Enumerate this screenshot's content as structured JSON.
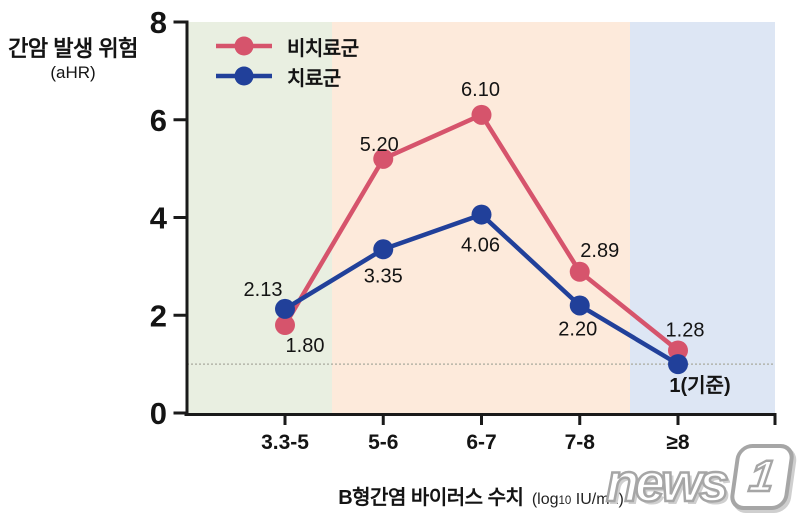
{
  "chart_data": {
    "type": "line",
    "ylabel": "간암 발생 위험",
    "ylabel_sub": "(aHR)",
    "xlabel": "B형간염 바이러스 수치",
    "xlabel_unit_prefix": "(log",
    "xlabel_unit_sub": "10",
    "xlabel_unit_suffix": " IU/mL)",
    "categories": [
      "3.3-5",
      "5-6",
      "6-7",
      "7-8",
      "≥8"
    ],
    "yticks": [
      0,
      2,
      4,
      6,
      8
    ],
    "ylim": [
      0,
      8
    ],
    "reference_line": 1,
    "grid": false,
    "legend_position": "top-left",
    "axis_color": "#1a1a1a",
    "series": [
      {
        "name": "비치료군",
        "color": "#d6546c",
        "values": [
          1.8,
          5.2,
          6.1,
          2.89,
          1.28
        ],
        "labels": [
          "1.80",
          "5.20",
          "6.10",
          "2.89",
          "1.28"
        ]
      },
      {
        "name": "치료군",
        "color": "#21409a",
        "values": [
          2.13,
          3.35,
          4.06,
          2.2,
          1.0
        ],
        "labels": [
          "2.13",
          "3.35",
          "4.06",
          "2.20",
          "1(기준)"
        ]
      }
    ],
    "bands": [
      {
        "color": "#e9efe1"
      },
      {
        "color": "#fdeadb"
      },
      {
        "color": "#dde6f4"
      }
    ]
  },
  "watermark": {
    "text": "news",
    "badge": "1"
  }
}
